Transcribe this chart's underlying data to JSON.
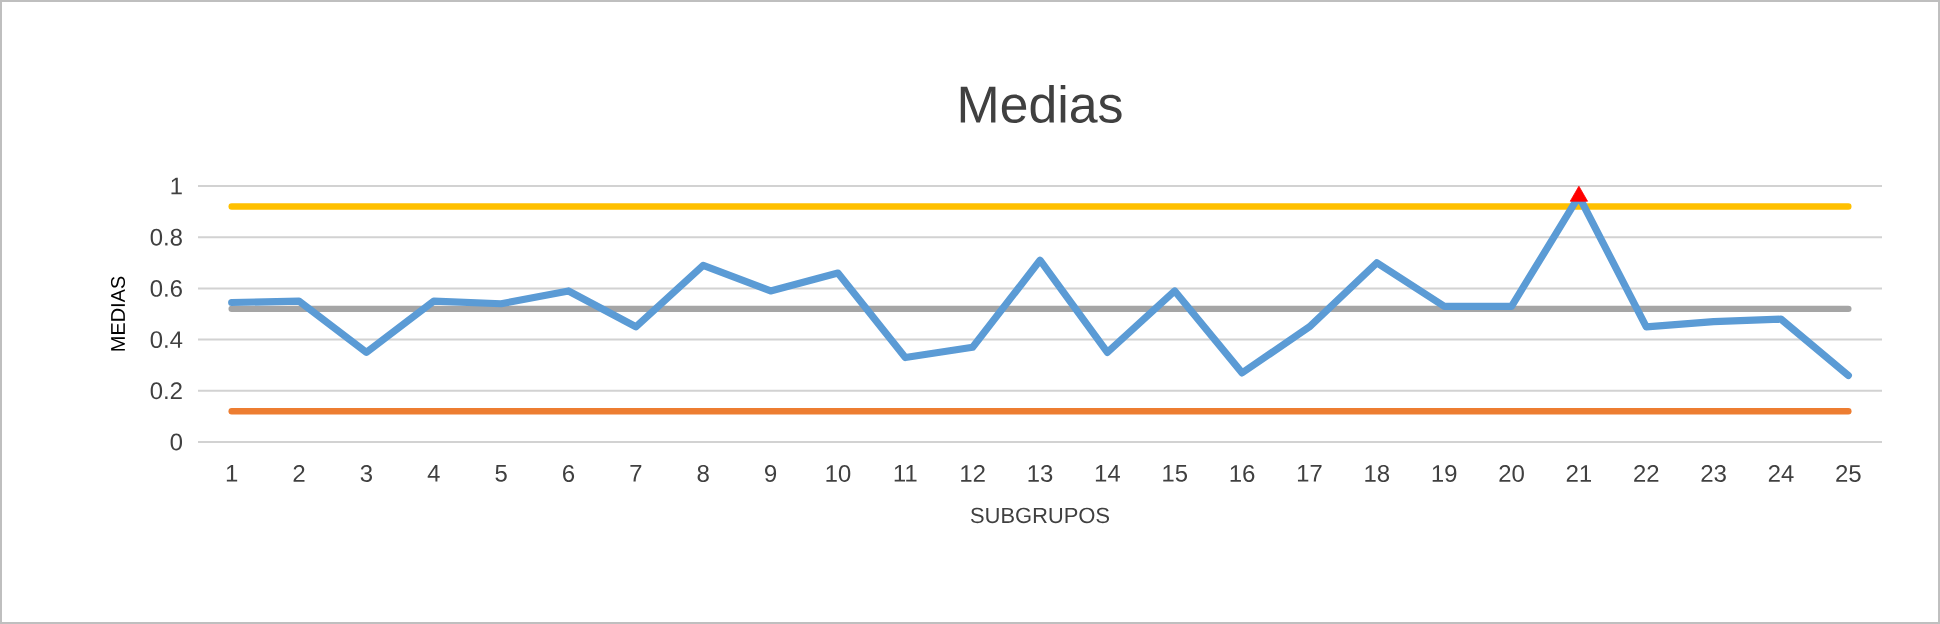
{
  "chart_data": {
    "type": "line",
    "title": "Medias",
    "xlabel": "SUBGRUPOS",
    "ylabel": "MEDIAS",
    "categories": [
      "1",
      "2",
      "3",
      "4",
      "5",
      "6",
      "7",
      "8",
      "9",
      "10",
      "11",
      "12",
      "13",
      "14",
      "15",
      "16",
      "17",
      "18",
      "19",
      "20",
      "21",
      "22",
      "23",
      "24",
      "25"
    ],
    "series": [
      {
        "color": "#5b9bd5",
        "marker": "none",
        "values": [
          0.545,
          0.55,
          0.35,
          0.55,
          0.54,
          0.59,
          0.45,
          0.69,
          0.59,
          0.66,
          0.33,
          0.37,
          0.71,
          0.35,
          0.59,
          0.27,
          0.45,
          0.7,
          0.53,
          0.53,
          0.96,
          0.45,
          0.47,
          0.48,
          0.26
        ]
      },
      {
        "type": "scatter",
        "color": "#ff0000",
        "marker": "triangle",
        "values": [
          null,
          null,
          null,
          null,
          null,
          null,
          null,
          null,
          null,
          null,
          null,
          null,
          null,
          null,
          null,
          null,
          null,
          null,
          null,
          null,
          0.96,
          null,
          null,
          null,
          null
        ]
      }
    ],
    "ref_lines": [
      {
        "axis": "y",
        "value": 0.92,
        "color": "#ffc000"
      },
      {
        "axis": "y",
        "value": 0.52,
        "color": "#a5a5a5"
      },
      {
        "axis": "y",
        "value": 0.12,
        "color": "#ed7d31"
      }
    ],
    "ylim": [
      0,
      1
    ],
    "yticks": [
      0,
      0.2,
      0.4,
      0.6,
      0.8,
      1
    ],
    "grid": "y"
  }
}
